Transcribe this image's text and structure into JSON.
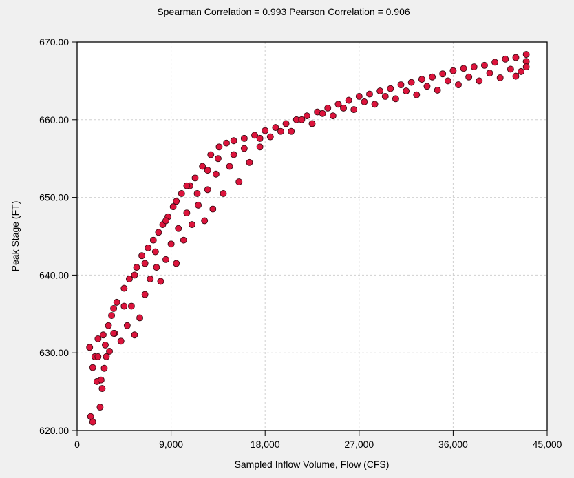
{
  "chart_data": {
    "type": "scatter",
    "title": "Spearman Correlation = 0.993  Pearson Correlation = 0.906",
    "xlabel": "Sampled Inflow Volume, Flow (CFS)",
    "ylabel": "Peak Stage (FT)",
    "xlim": [
      0,
      45000
    ],
    "ylim": [
      620,
      670
    ],
    "xticks": [
      "0",
      "9,000",
      "18,000",
      "27,000",
      "36,000",
      "45,000"
    ],
    "xtick_values": [
      0,
      9000,
      18000,
      27000,
      36000,
      45000
    ],
    "yticks": [
      "620.00",
      "630.00",
      "640.00",
      "650.00",
      "660.00",
      "670.00"
    ],
    "ytick_values": [
      620,
      630,
      640,
      650,
      660,
      670
    ],
    "grid": true,
    "marker_color": "#dc143c",
    "marker_edge_color": "#3a0a12",
    "points": [
      [
        1200,
        630.7
      ],
      [
        1300,
        621.8
      ],
      [
        1500,
        621.1
      ],
      [
        1500,
        628.1
      ],
      [
        1700,
        629.5
      ],
      [
        1900,
        626.3
      ],
      [
        2000,
        631.8
      ],
      [
        2200,
        623
      ],
      [
        2300,
        626.5
      ],
      [
        2400,
        625.4
      ],
      [
        2500,
        632.3
      ],
      [
        2600,
        628
      ],
      [
        2800,
        629.5
      ],
      [
        3000,
        633.5
      ],
      [
        3100,
        630.2
      ],
      [
        3300,
        634.8
      ],
      [
        3500,
        635.7
      ],
      [
        3800,
        636.5
      ],
      [
        3600,
        632.5
      ],
      [
        4200,
        631.5
      ],
      [
        4500,
        638.3
      ],
      [
        4800,
        633.5
      ],
      [
        5000,
        639.5
      ],
      [
        5200,
        636
      ],
      [
        5500,
        632.3
      ],
      [
        5700,
        641
      ],
      [
        6000,
        634.5
      ],
      [
        6200,
        642.5
      ],
      [
        6500,
        637.5
      ],
      [
        6800,
        643.5
      ],
      [
        7000,
        639.5
      ],
      [
        7300,
        644.5
      ],
      [
        7600,
        641
      ],
      [
        7800,
        645.5
      ],
      [
        8000,
        639.2
      ],
      [
        8200,
        646.5
      ],
      [
        8500,
        642
      ],
      [
        8700,
        647.5
      ],
      [
        9000,
        644
      ],
      [
        9200,
        648.8
      ],
      [
        9500,
        641.5
      ],
      [
        9700,
        646
      ],
      [
        10000,
        650.5
      ],
      [
        10200,
        644.5
      ],
      [
        10500,
        648
      ],
      [
        10800,
        651.5
      ],
      [
        11000,
        646.5
      ],
      [
        11300,
        652.5
      ],
      [
        11600,
        649
      ],
      [
        12000,
        654
      ],
      [
        12200,
        647
      ],
      [
        12500,
        651
      ],
      [
        12800,
        655.5
      ],
      [
        13000,
        648.5
      ],
      [
        13300,
        653
      ],
      [
        13600,
        656.5
      ],
      [
        14000,
        650.5
      ],
      [
        14300,
        657
      ],
      [
        14600,
        654
      ],
      [
        15000,
        657.3
      ],
      [
        15500,
        652
      ],
      [
        16000,
        657.6
      ],
      [
        16500,
        654.5
      ],
      [
        17000,
        658
      ],
      [
        17500,
        656.5
      ],
      [
        18000,
        658.6
      ],
      [
        18500,
        657.8
      ],
      [
        19000,
        659
      ],
      [
        20000,
        659.5
      ],
      [
        20500,
        658.5
      ],
      [
        21000,
        660
      ],
      [
        22000,
        660.5
      ],
      [
        22500,
        659.5
      ],
      [
        23000,
        661
      ],
      [
        24000,
        661.5
      ],
      [
        24500,
        660.5
      ],
      [
        25000,
        662
      ],
      [
        26000,
        662.5
      ],
      [
        26500,
        661.3
      ],
      [
        27000,
        663
      ],
      [
        28000,
        663.3
      ],
      [
        28500,
        662
      ],
      [
        29000,
        663.7
      ],
      [
        30000,
        664
      ],
      [
        30500,
        662.7
      ],
      [
        31000,
        664.5
      ],
      [
        32000,
        664.8
      ],
      [
        32500,
        663.2
      ],
      [
        33000,
        665.2
      ],
      [
        34000,
        665.5
      ],
      [
        34500,
        663.8
      ],
      [
        35000,
        665.9
      ],
      [
        36000,
        666.3
      ],
      [
        36500,
        664.5
      ],
      [
        37000,
        666.6
      ],
      [
        38000,
        666.8
      ],
      [
        38500,
        665
      ],
      [
        39000,
        667
      ],
      [
        40000,
        667.4
      ],
      [
        40500,
        665.4
      ],
      [
        41000,
        667.8
      ],
      [
        42000,
        668
      ],
      [
        42000,
        665.6
      ],
      [
        42500,
        666.2
      ],
      [
        43000,
        668.4
      ],
      [
        43000,
        667.5
      ],
      [
        43000,
        666.8
      ],
      [
        41500,
        666.5
      ],
      [
        39500,
        666
      ],
      [
        37500,
        665.5
      ],
      [
        35500,
        665
      ],
      [
        33500,
        664.3
      ],
      [
        31500,
        663.7
      ],
      [
        29500,
        663
      ],
      [
        27500,
        662.3
      ],
      [
        25500,
        661.5
      ],
      [
        23500,
        660.8
      ],
      [
        21500,
        660
      ],
      [
        19500,
        658.5
      ],
      [
        17500,
        657.6
      ],
      [
        16000,
        656.3
      ],
      [
        15000,
        655.5
      ],
      [
        13500,
        655
      ],
      [
        12500,
        653.5
      ],
      [
        11500,
        650.5
      ],
      [
        10500,
        651.5
      ],
      [
        9500,
        649.5
      ],
      [
        8500,
        647
      ],
      [
        7500,
        643
      ],
      [
        6500,
        641.5
      ],
      [
        5500,
        640
      ],
      [
        4500,
        636
      ],
      [
        3500,
        632.5
      ],
      [
        2700,
        631
      ],
      [
        2000,
        629.5
      ]
    ]
  }
}
